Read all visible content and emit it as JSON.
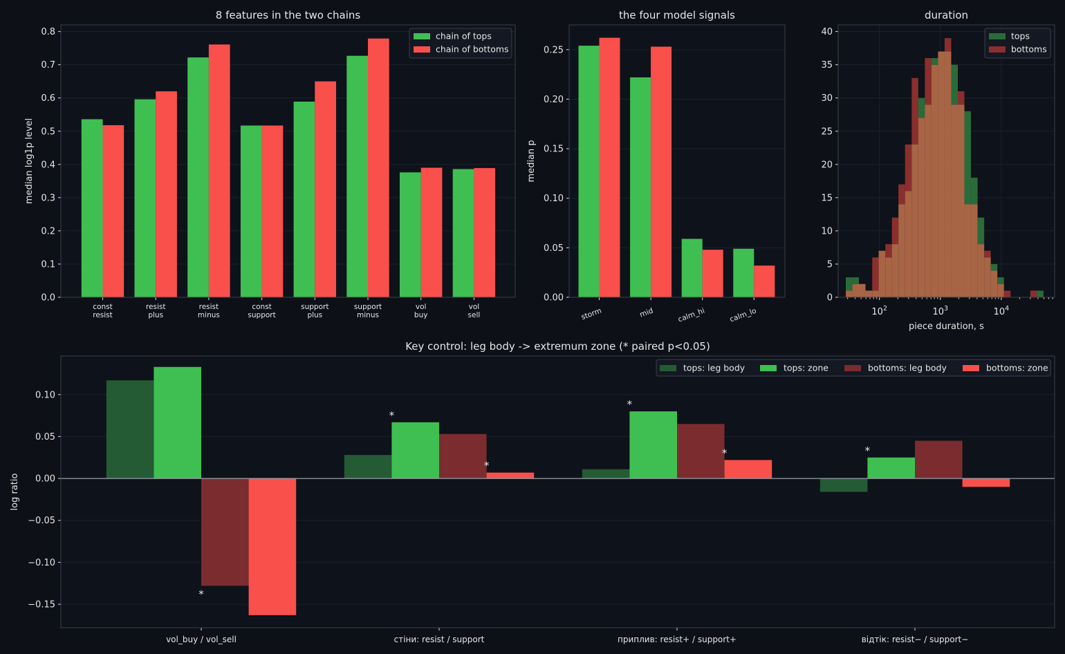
{
  "colors": {
    "background": "#0d1017",
    "panel": "#0e121a",
    "text": "#e6e6e6",
    "spine": "#3a3f4a",
    "grid": "#1c212b",
    "tops": "#3fbf52",
    "bottoms": "#f9504c",
    "tops_dark": "#245a34",
    "bottoms_dark": "#7a2c2f",
    "hist_tops": "#2a6b3a",
    "hist_bottoms": "#8a2f2e",
    "hist_overlap": "#a86545"
  },
  "chart_data": [
    {
      "type": "bar",
      "title": "8 features in the two chains",
      "ylabel": "median log1p level",
      "xlabel": "",
      "ylim": [
        0,
        0.82
      ],
      "yticks": [
        "0.0",
        "0.1",
        "0.2",
        "0.3",
        "0.4",
        "0.5",
        "0.6",
        "0.7",
        "0.8"
      ],
      "categories": [
        [
          "const",
          "resist"
        ],
        [
          "resist",
          "plus"
        ],
        [
          "resist",
          "minus"
        ],
        [
          "const",
          "support"
        ],
        [
          "support",
          "plus"
        ],
        [
          "support",
          "minus"
        ],
        [
          "vol",
          "buy"
        ],
        [
          "vol",
          "sell"
        ]
      ],
      "series": [
        {
          "name": "chain of tops",
          "values": [
            0.536,
            0.596,
            0.722,
            0.517,
            0.589,
            0.727,
            0.376,
            0.386
          ]
        },
        {
          "name": "chain of bottoms",
          "values": [
            0.518,
            0.62,
            0.761,
            0.517,
            0.65,
            0.779,
            0.39,
            0.389
          ]
        }
      ],
      "legend": "top-right",
      "grid": true
    },
    {
      "type": "bar",
      "title": "the four model signals",
      "ylabel": "median p",
      "xlabel": "",
      "ylim": [
        0,
        0.275
      ],
      "yticks": [
        "0.00",
        "0.05",
        "0.10",
        "0.15",
        "0.20",
        "0.25"
      ],
      "categories": [
        "storm",
        "mid",
        "calm_hi",
        "calm_lo"
      ],
      "series": [
        {
          "name": "tops",
          "values": [
            0.254,
            0.222,
            0.059,
            0.049
          ]
        },
        {
          "name": "bottoms",
          "values": [
            0.262,
            0.253,
            0.048,
            0.032
          ]
        }
      ],
      "legend": "none",
      "grid": true
    },
    {
      "type": "histogram",
      "title": "duration",
      "xlabel": "piece duration, s",
      "ylabel": "",
      "x_scale": "log",
      "xlim": [
        21,
        75000
      ],
      "ylim": [
        0,
        41
      ],
      "yticks": [
        "0",
        "5",
        "10",
        "15",
        "20",
        "25",
        "30",
        "35",
        "40"
      ],
      "xticks": [
        {
          "value": 100,
          "base": "10",
          "exp": "2"
        },
        {
          "value": 1000,
          "base": "10",
          "exp": "3"
        },
        {
          "value": 10000,
          "base": "10",
          "exp": "4"
        }
      ],
      "bin_edges": [
        28,
        36,
        46,
        59,
        76,
        97,
        125,
        160,
        205,
        263,
        338,
        433,
        556,
        713,
        915,
        1174,
        1506,
        1932,
        2479,
        3180,
        4080,
        5234,
        6715,
        8615,
        11052,
        14180,
        18190,
        23340,
        29940,
        38410,
        49280,
        63230
      ],
      "series": [
        {
          "name": "tops",
          "counts": [
            3,
            3,
            2,
            1,
            1,
            7,
            6,
            8,
            14,
            16,
            23,
            30,
            29,
            36,
            37,
            37,
            35,
            29,
            28,
            18,
            12,
            6,
            5,
            3,
            0,
            0,
            0,
            0,
            0,
            1,
            0
          ]
        },
        {
          "name": "bottoms",
          "counts": [
            1,
            2,
            2,
            1,
            6,
            7,
            8,
            12,
            17,
            23,
            33,
            27,
            36,
            35,
            37,
            39,
            29,
            31,
            14,
            14,
            8,
            7,
            4,
            2,
            1,
            0,
            0,
            0,
            1,
            0,
            0
          ]
        }
      ],
      "legend": "top-right",
      "grid": true
    },
    {
      "type": "bar",
      "title": "Key control: leg body -> extremum zone (* paired p<0.05)",
      "ylabel": "log ratio",
      "xlabel": "",
      "ylim": [
        -0.178,
        0.146
      ],
      "yticks": [
        {
          "value": 0.1,
          "label": "0.10"
        },
        {
          "value": 0.05,
          "label": "0.05"
        },
        {
          "value": 0,
          "label": "0.00"
        },
        {
          "value": -0.05,
          "label": "−0.05"
        },
        {
          "value": -0.1,
          "label": "−0.10"
        },
        {
          "value": -0.15,
          "label": "−0.15"
        }
      ],
      "categories": [
        "vol_buy / vol_sell",
        "стіни: resist / support",
        "приплив: resist+ / support+",
        "відтік: resist− / support−"
      ],
      "series": [
        {
          "name": "tops: leg body",
          "values": [
            0.117,
            0.028,
            0.011,
            -0.016
          ]
        },
        {
          "name": "tops: zone",
          "values": [
            0.133,
            0.067,
            0.08,
            0.025
          ]
        },
        {
          "name": "bottoms: leg body",
          "values": [
            -0.128,
            0.053,
            0.065,
            0.045
          ]
        },
        {
          "name": "bottoms: zone",
          "values": [
            -0.163,
            0.007,
            0.022,
            -0.01
          ]
        }
      ],
      "significance_marker": "*",
      "significant": [
        [
          0,
          2
        ],
        [
          1,
          1
        ],
        [
          1,
          3
        ],
        [
          2,
          1
        ],
        [
          2,
          3
        ],
        [
          3,
          1
        ]
      ],
      "legend": "top-right",
      "grid": true
    }
  ]
}
